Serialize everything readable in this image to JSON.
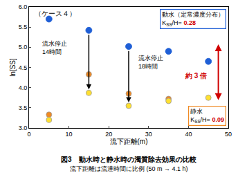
{
  "chart_data": {
    "type": "scatter",
    "marker": "circle",
    "grid": false,
    "x": [
      5,
      15,
      25,
      35,
      45
    ],
    "series": [
      {
        "color": "#1f5fd6",
        "values": [
          5.7,
          5.42,
          5.02,
          4.9,
          4.65
        ]
      },
      {
        "color": "#f08a24",
        "values": [
          3.33,
          4.33,
          3.85,
          3.72,
          null
        ]
      },
      {
        "color": "#ffe030",
        "values": [
          3.2,
          3.87,
          3.55,
          3.67,
          3.75
        ]
      }
    ],
    "xlim": [
      0,
      50
    ],
    "xticks": [
      0,
      10,
      20,
      30,
      40,
      50
    ],
    "ylim": [
      3.0,
      6.0
    ],
    "yticks": [
      {
        "value": 3.0,
        "label": "3.0"
      },
      {
        "value": 3.5,
        "label": "3.5"
      },
      {
        "value": 4.0,
        "label": "4.0"
      },
      {
        "value": 4.5,
        "label": "4.5"
      },
      {
        "value": 5.0,
        "label": "5.0"
      },
      {
        "value": 5.5,
        "label": "5.5"
      },
      {
        "value": 6.0,
        "label": "6.0"
      }
    ],
    "x_label": "流下距離(m)",
    "y_label": "ln[SS]",
    "annotations": {
      "case_label": "（ケース４）",
      "stop_14h": [
        "流水停止",
        "14時間"
      ],
      "stop_18h": [
        "流水停止",
        "18時間"
      ],
      "ratio": "約 3 倍",
      "flowing_box": {
        "text": "動水（定常濃度分布）",
        "coef_symbol": "K",
        "coef_subscript": "SS",
        "coef_suffix": "/H=",
        "coef_value": 0.28
      },
      "still_box": {
        "text": "静水",
        "coef_symbol": "K",
        "coef_subscript": "SS",
        "coef_suffix": "/H=",
        "coef_value": 0.09
      }
    },
    "caption": [
      "図3　動水時と静水時の濁質除去効果の比較",
      "流下距離は流達時間に比例 (50 m → 4.1 h)"
    ]
  }
}
